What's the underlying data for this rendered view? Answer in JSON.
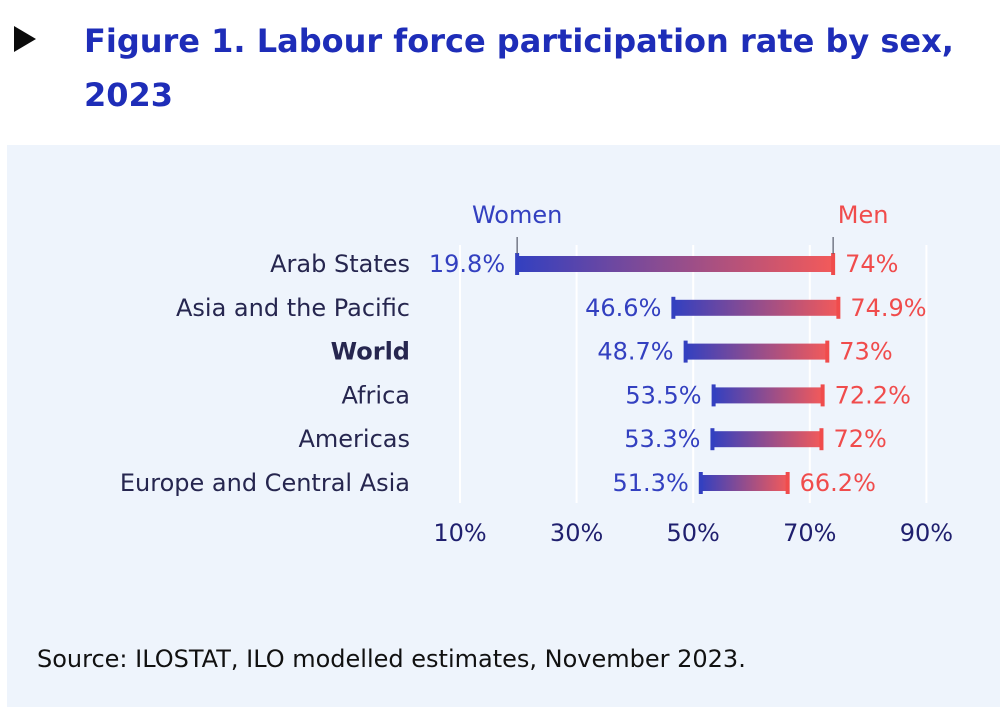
{
  "header": {
    "toggle_icon": "triangle-right-icon",
    "title": "Figure 1. Labour force participation rate by sex, 2023"
  },
  "chart_data": {
    "type": "dumbbell",
    "title": "Figure 1. Labour force participation rate by sex, 2023",
    "legend": {
      "women": "Women",
      "men": "Men"
    },
    "colors": {
      "women": "#3340c0",
      "men": "#f04c4c",
      "axis_text": "#1f1f6e",
      "label_text": "#26264f"
    },
    "categories": [
      "Arab States",
      "Asia and the Pacific",
      "World",
      "Africa",
      "Americas",
      "Europe and Central Asia"
    ],
    "emphasized_category": "World",
    "series": [
      {
        "name": "Women",
        "values": [
          19.8,
          46.6,
          48.7,
          53.5,
          53.3,
          51.3
        ],
        "labels": [
          "19.8%",
          "46.6%",
          "48.7%",
          "53.5%",
          "53.3%",
          "51.3%"
        ]
      },
      {
        "name": "Men",
        "values": [
          74,
          74.9,
          73,
          72.2,
          72,
          66.2
        ],
        "labels": [
          "74%",
          "74.9%",
          "73%",
          "72.2%",
          "72%",
          "66.2%"
        ]
      }
    ],
    "x_ticks": [
      10,
      30,
      50,
      70,
      90
    ],
    "x_tick_labels": [
      "10%",
      "30%",
      "50%",
      "70%",
      "90%"
    ],
    "xlim": [
      10,
      90
    ],
    "grid": true
  },
  "source": "Source: ILOSTAT, ILO modelled estimates, November 2023."
}
